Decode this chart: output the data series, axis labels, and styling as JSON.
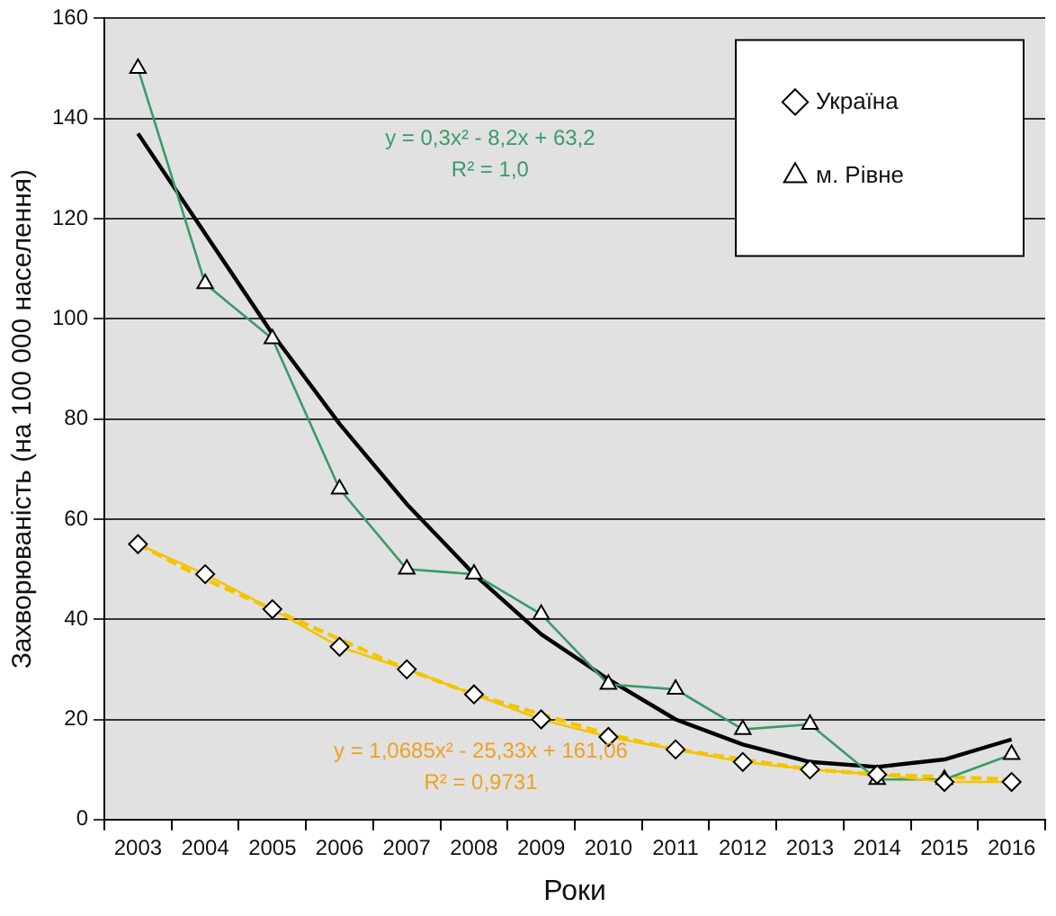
{
  "chart_data": {
    "type": "line",
    "xlabel": "Роки",
    "ylabel": "Захворюваність (на 100 000 населення)",
    "categories": [
      "2003",
      "2004",
      "2005",
      "2006",
      "2007",
      "2008",
      "2009",
      "2010",
      "2011",
      "2012",
      "2013",
      "2014",
      "2015",
      "2016"
    ],
    "ylim": [
      0,
      160
    ],
    "yticks": [
      0,
      20,
      40,
      60,
      80,
      100,
      120,
      140,
      160
    ],
    "grid": "y",
    "legend": "top right",
    "series": [
      {
        "name": "Україна",
        "color": "#f5c400",
        "marker": "diamond",
        "values": [
          55,
          49,
          42,
          34.5,
          30,
          25,
          20,
          16.5,
          14,
          11.5,
          10,
          9,
          7.5,
          7.5
        ]
      },
      {
        "name": "м. Рівне",
        "color": "#3a9a6a",
        "marker": "triangle",
        "values": [
          150,
          107,
          96,
          66,
          50,
          49,
          41,
          27,
          26,
          18,
          19,
          8,
          8,
          13
        ]
      },
      {
        "color": "#f5c400",
        "marker": "none",
        "line_style": "dashed",
        "values": [
          55,
          48,
          42,
          36,
          30,
          25,
          21,
          17,
          14,
          12,
          10,
          9,
          8.5,
          8
        ]
      },
      {
        "color": "#000000",
        "marker": "none",
        "line_style": "solid",
        "values": [
          137,
          117,
          97,
          79,
          63,
          49,
          37,
          28,
          20,
          15,
          11.5,
          10.5,
          12,
          16
        ]
      }
    ],
    "annotations": [
      "y = 0,3x² - 8,2x + 63,2",
      "R² = 1,0",
      "y = 1,0685x² - 25,33x + 161,06",
      "R² = 0,9731"
    ]
  }
}
